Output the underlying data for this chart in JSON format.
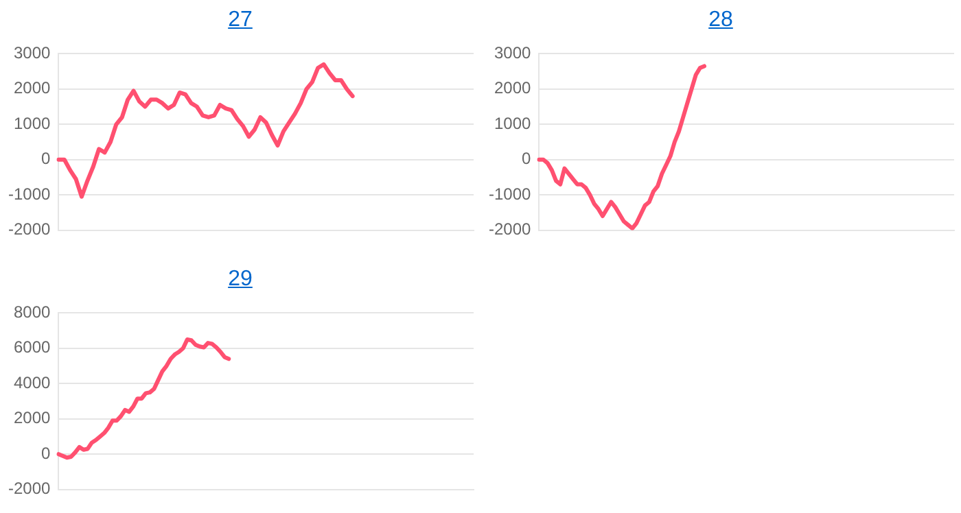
{
  "chart_data": [
    {
      "type": "line",
      "title": "27",
      "color": "#ff5070",
      "grid": "y",
      "tick_labels": "y",
      "marker": "none",
      "ylim": [
        -2000,
        3000
      ],
      "yticks": [
        -2000,
        -1000,
        0,
        1000,
        2000,
        3000
      ],
      "categories": [
        null,
        null,
        null,
        null,
        null,
        null,
        null,
        null,
        null,
        null,
        null,
        null,
        null,
        null,
        null,
        null,
        null,
        null,
        null,
        null,
        null,
        null,
        null,
        null,
        null,
        null,
        null,
        null,
        null,
        null,
        null,
        null,
        null,
        null,
        null,
        null,
        null,
        null,
        null,
        null,
        null,
        null,
        null,
        null,
        null,
        null,
        null,
        null,
        null,
        null,
        null,
        null,
        null,
        null,
        null,
        null,
        null,
        null,
        null,
        null,
        null,
        null,
        null,
        null,
        null,
        null,
        null,
        null,
        null,
        null,
        null,
        null,
        null
      ],
      "values": [
        0,
        0,
        -300,
        -550,
        -1050,
        -600,
        -200,
        300,
        200,
        500,
        1000,
        1200,
        1700,
        1950,
        1650,
        1500,
        1700,
        1700,
        1600,
        1450,
        1550,
        1900,
        1850,
        1600,
        1500,
        1250,
        1200,
        1250,
        1550,
        1450,
        1400,
        1150,
        950,
        650,
        850,
        1200,
        1050,
        700,
        400,
        800,
        1050,
        1300,
        1600,
        2000,
        2200,
        2600,
        2700,
        2450,
        2250,
        2250,
        2000,
        1800,
        null,
        null,
        null,
        null,
        null,
        null,
        null,
        null,
        null,
        null,
        null,
        null,
        null,
        null,
        null,
        null,
        null,
        null,
        null,
        null,
        null
      ]
    },
    {
      "type": "line",
      "title": "28",
      "color": "#ff5070",
      "grid": "y",
      "tick_labels": "y",
      "marker": "none",
      "ylim": [
        -2000,
        3000
      ],
      "yticks": [
        -2000,
        -1000,
        0,
        1000,
        2000,
        3000
      ],
      "categories": [
        null,
        null,
        null,
        null,
        null,
        null,
        null,
        null,
        null,
        null,
        null,
        null,
        null,
        null,
        null,
        null,
        null,
        null,
        null,
        null,
        null,
        null,
        null,
        null,
        null,
        null,
        null,
        null,
        null,
        null,
        null,
        null,
        null,
        null,
        null,
        null,
        null,
        null,
        null,
        null,
        null,
        null,
        null,
        null,
        null,
        null,
        null,
        null,
        null,
        null,
        null,
        null,
        null,
        null,
        null,
        null,
        null,
        null,
        null,
        null,
        null,
        null,
        null,
        null,
        null,
        null,
        null,
        null,
        null,
        null,
        null,
        null,
        null,
        null,
        null,
        null,
        null,
        null,
        null,
        null,
        null,
        null,
        null,
        null,
        null,
        null,
        null,
        null,
        null,
        null,
        null,
        null,
        null,
        null,
        null,
        null,
        null,
        null,
        null
      ],
      "values": [
        0,
        0,
        -100,
        -300,
        -600,
        -700,
        -250,
        -400,
        -550,
        -700,
        -700,
        -800,
        -1000,
        -1250,
        -1400,
        -1600,
        -1400,
        -1200,
        -1350,
        -1550,
        -1750,
        -1850,
        -1950,
        -1800,
        -1550,
        -1300,
        -1200,
        -900,
        -750,
        -400,
        -150,
        100,
        500,
        800,
        1200,
        1600,
        2000,
        2400,
        2600,
        2650,
        null,
        null,
        null,
        null,
        null,
        null,
        null,
        null,
        null,
        null,
        null,
        null,
        null,
        null,
        null,
        null,
        null,
        null,
        null,
        null,
        null,
        null,
        null,
        null,
        null,
        null,
        null,
        null,
        null,
        null,
        null,
        null,
        null,
        null,
        null,
        null,
        null,
        null,
        null,
        null,
        null,
        null,
        null,
        null,
        null,
        null,
        null,
        null,
        null,
        null,
        null,
        null,
        null,
        null,
        null,
        null,
        null,
        null,
        null
      ]
    },
    {
      "type": "line",
      "title": "29",
      "color": "#ff5070",
      "grid": "y",
      "tick_labels": "y",
      "marker": "none",
      "ylim": [
        -2000,
        8000
      ],
      "yticks": [
        -2000,
        0,
        2000,
        4000,
        6000,
        8000
      ],
      "categories": [
        null,
        null,
        null,
        null,
        null,
        null,
        null,
        null,
        null,
        null,
        null,
        null,
        null,
        null,
        null,
        null,
        null,
        null,
        null,
        null,
        null,
        null,
        null,
        null,
        null,
        null,
        null,
        null,
        null,
        null,
        null,
        null,
        null,
        null,
        null,
        null,
        null,
        null,
        null,
        null,
        null,
        null,
        null,
        null,
        null,
        null,
        null,
        null,
        null,
        null,
        null,
        null,
        null,
        null,
        null,
        null,
        null,
        null,
        null,
        null,
        null,
        null,
        null,
        null,
        null,
        null,
        null,
        null,
        null,
        null,
        null,
        null,
        null,
        null,
        null,
        null,
        null,
        null,
        null,
        null,
        null,
        null,
        null,
        null,
        null,
        null,
        null,
        null,
        null,
        null,
        null,
        null,
        null,
        null,
        null,
        null,
        null,
        null,
        null,
        null,
        null
      ],
      "values": [
        0,
        -100,
        -200,
        -150,
        100,
        400,
        250,
        300,
        650,
        800,
        1000,
        1200,
        1500,
        1900,
        1900,
        2150,
        2500,
        2400,
        2700,
        3150,
        3150,
        3450,
        3500,
        3700,
        4200,
        4700,
        5000,
        5400,
        5650,
        5800,
        6000,
        6500,
        6450,
        6200,
        6100,
        6050,
        6300,
        6250,
        6050,
        5800,
        5500,
        5400,
        null,
        null,
        null,
        null,
        null,
        null,
        null,
        null,
        null,
        null,
        null,
        null,
        null,
        null,
        null,
        null,
        null,
        null,
        null,
        null,
        null,
        null,
        null,
        null,
        null,
        null,
        null,
        null,
        null,
        null,
        null,
        null,
        null,
        null,
        null,
        null,
        null,
        null,
        null,
        null,
        null,
        null,
        null,
        null,
        null,
        null,
        null,
        null,
        null,
        null,
        null,
        null,
        null,
        null,
        null,
        null,
        null,
        null,
        null
      ]
    }
  ]
}
